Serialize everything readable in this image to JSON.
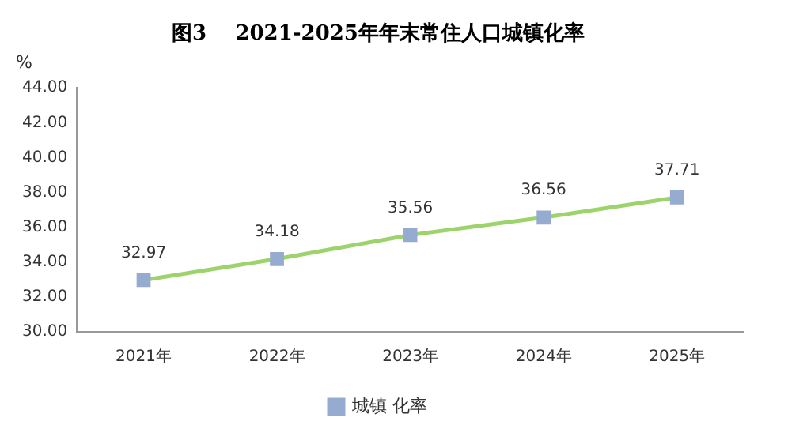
{
  "chart_data": {
    "type": "line",
    "title": "图3    2021-2025年年末常住人口城镇化率",
    "ylabel": "%",
    "categories": [
      "2021年",
      "2022年",
      "2023年",
      "2024年",
      "2025年"
    ],
    "series": [
      {
        "name": "城镇 化率",
        "color": "#9dd36b",
        "colors": [
          "#95abd0",
          "#95abd0",
          "#95abd0",
          "#95abd0",
          "#95abd0"
        ],
        "values": [
          32.97,
          34.18,
          35.56,
          36.56,
          37.71
        ]
      }
    ],
    "ylim": [
      30,
      44
    ],
    "yticks": [
      {
        "value": 30,
        "label": "30.00"
      },
      {
        "value": 32,
        "label": "32.00"
      },
      {
        "value": 34,
        "label": "34.00"
      },
      {
        "value": 36,
        "label": "36.00"
      },
      {
        "value": 38,
        "label": "38.00"
      },
      {
        "value": 40,
        "label": "40.00"
      },
      {
        "value": 42,
        "label": "42.00"
      },
      {
        "value": 44,
        "label": "44.00"
      }
    ],
    "grid": false,
    "legend": "bottom",
    "marker": "square",
    "line_style": "solid",
    "data_labels": true
  }
}
